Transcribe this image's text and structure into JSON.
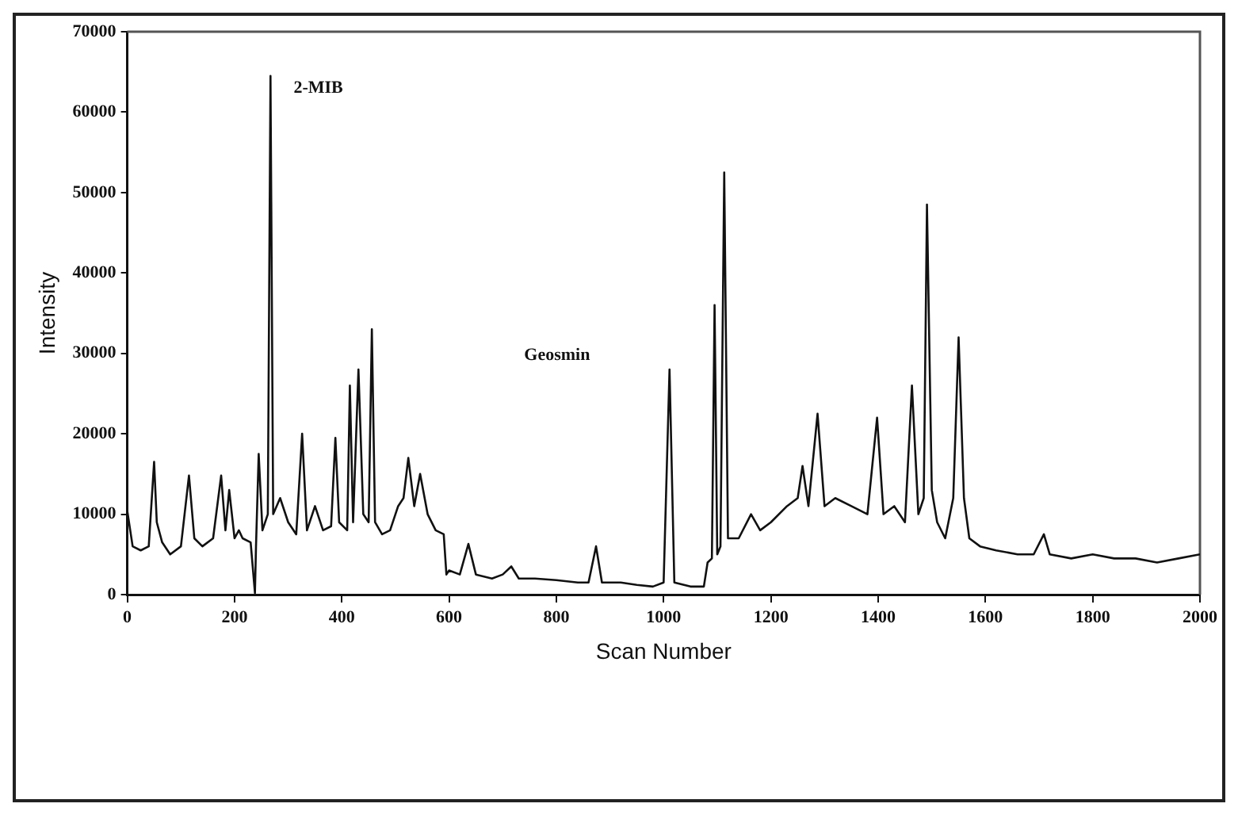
{
  "chart_data": {
    "type": "line",
    "xlabel": "Scan Number",
    "ylabel": "Intensity",
    "annotations": [
      "2-MIB",
      "Geosmin"
    ],
    "xlim": [
      0,
      2000
    ],
    "xticks": [
      0,
      200,
      400,
      600,
      800,
      1000,
      1200,
      1400,
      1600,
      1800,
      2000
    ],
    "ylim": [
      0,
      70000
    ],
    "yticks": [
      0,
      10000,
      20000,
      30000,
      40000,
      50000,
      60000,
      70000
    ],
    "grid": false,
    "legend": false,
    "marker": "none",
    "line_style": "solid",
    "series": [
      {
        "color": "#111111",
        "x": [
          0,
          10,
          25,
          40,
          50,
          55,
          65,
          80,
          100,
          115,
          125,
          140,
          160,
          175,
          183,
          190,
          200,
          208,
          215,
          230,
          238,
          240,
          245,
          252,
          262,
          267,
          272,
          285,
          300,
          315,
          326,
          335,
          350,
          365,
          380,
          388,
          395,
          410,
          415,
          421,
          431,
          440,
          450,
          456,
          462,
          475,
          490,
          505,
          515,
          524,
          535,
          546,
          560,
          575,
          590,
          595,
          600,
          620,
          636,
          650,
          680,
          700,
          716,
          730,
          760,
          800,
          840,
          860,
          874,
          885,
          920,
          950,
          980,
          1000,
          1011,
          1020,
          1050,
          1075,
          1082,
          1090,
          1095,
          1100,
          1106,
          1113,
          1120,
          1140,
          1163,
          1180,
          1200,
          1230,
          1250,
          1259,
          1270,
          1287,
          1300,
          1320,
          1350,
          1380,
          1398,
          1410,
          1430,
          1450,
          1463,
          1475,
          1485,
          1491,
          1500,
          1510,
          1525,
          1540,
          1550,
          1560,
          1570,
          1590,
          1620,
          1660,
          1690,
          1709,
          1720,
          1760,
          1800,
          1840,
          1880,
          1920,
          1960,
          2000
        ],
        "values": [
          10400,
          6000,
          5500,
          6000,
          16500,
          9000,
          6500,
          5000,
          6000,
          14800,
          7000,
          6000,
          7000,
          14800,
          8000,
          13000,
          7000,
          8000,
          7000,
          6500,
          200,
          6000,
          17500,
          8000,
          10000,
          64500,
          10000,
          12000,
          9000,
          7500,
          20000,
          8000,
          11000,
          8000,
          8500,
          19500,
          9000,
          8000,
          26000,
          9000,
          28000,
          10000,
          9000,
          33000,
          9000,
          7500,
          8000,
          11000,
          12000,
          17000,
          11000,
          15000,
          10000,
          8000,
          7500,
          2500,
          3000,
          2500,
          6300,
          2500,
          2000,
          2500,
          3500,
          2000,
          2000,
          1800,
          1500,
          1500,
          6000,
          1500,
          1500,
          1200,
          1000,
          1500,
          28000,
          1500,
          1000,
          1000,
          4000,
          4500,
          36000,
          5000,
          6000,
          52500,
          7000,
          7000,
          10000,
          8000,
          9000,
          11000,
          12000,
          16000,
          11000,
          22500,
          11000,
          12000,
          11000,
          10000,
          22000,
          10000,
          11000,
          9000,
          26000,
          10000,
          12000,
          48500,
          13000,
          9000,
          7000,
          12000,
          32000,
          12000,
          7000,
          6000,
          5500,
          5000,
          5000,
          7500,
          5000,
          4500,
          5000,
          4500,
          4500,
          4000,
          4500,
          5000
        ]
      }
    ]
  }
}
